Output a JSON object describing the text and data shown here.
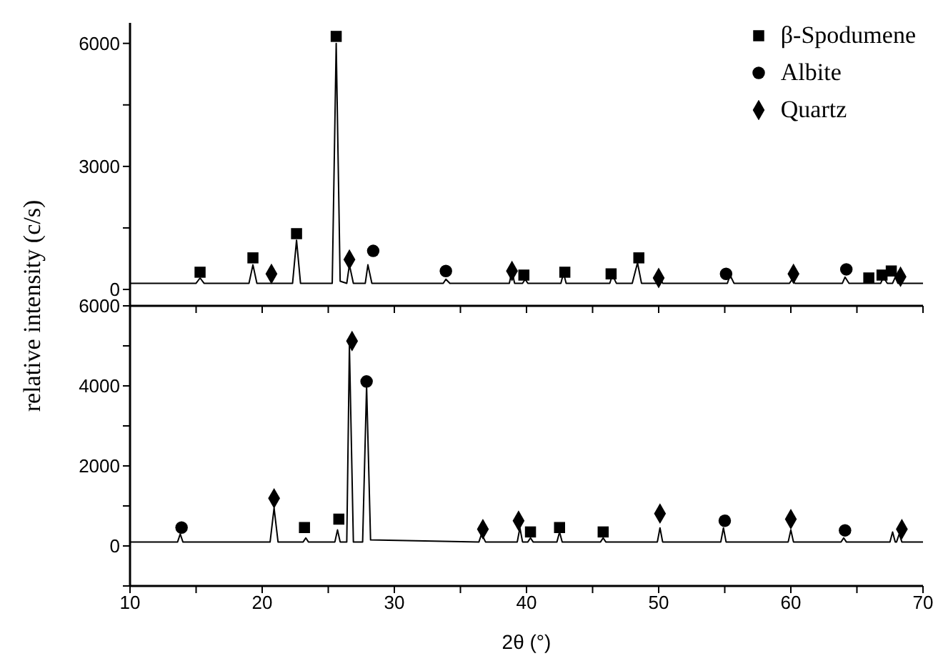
{
  "chart_data": [
    {
      "type": "line",
      "ylabel": "relative intensity (c/s)",
      "xlim": [
        10,
        70
      ],
      "xticks": [
        10,
        {
          "value": 15,
          "label": null
        },
        20,
        {
          "value": 25,
          "label": null
        },
        30,
        {
          "value": 35,
          "label": null
        },
        40,
        {
          "value": 45,
          "label": null
        },
        50,
        {
          "value": 55,
          "label": null
        },
        60,
        {
          "value": 65,
          "label": null
        },
        70
      ],
      "ylim": [
        -400,
        6500
      ],
      "yticks": [
        0,
        {
          "value": 1500,
          "label": null
        },
        3000,
        {
          "value": 4500,
          "label": null
        },
        6000
      ],
      "tick_labels": "y",
      "legend": "top right",
      "grid": false,
      "series": [
        {
          "color": "#000000",
          "marker": "none",
          "x": [
            10,
            15.0,
            15.3,
            15.6,
            19.0,
            19.3,
            19.6,
            22.3,
            22.6,
            22.9,
            25.3,
            25.6,
            25.9,
            26.4,
            26.6,
            26.9,
            27.8,
            28.0,
            28.3,
            33.7,
            33.9,
            34.2,
            38.7,
            38.9,
            39.1,
            39.7,
            39.9,
            40.1,
            42.6,
            42.8,
            43.0,
            46.3,
            46.5,
            46.8,
            48.0,
            48.4,
            48.7,
            49.9,
            50.1,
            50.3,
            55.2,
            55.4,
            55.7,
            59.9,
            60.1,
            60.3,
            63.9,
            64.1,
            64.4,
            66.8,
            67.0,
            67.3,
            67.7,
            67.9,
            68.1,
            70
          ],
          "values": [
            150,
            150,
            280,
            150,
            150,
            600,
            150,
            150,
            1200,
            150,
            150,
            6000,
            200,
            150,
            600,
            150,
            150,
            600,
            150,
            150,
            250,
            150,
            150,
            450,
            150,
            150,
            250,
            150,
            150,
            400,
            150,
            150,
            350,
            150,
            150,
            650,
            150,
            150,
            300,
            150,
            150,
            350,
            150,
            150,
            250,
            150,
            150,
            300,
            150,
            150,
            300,
            150,
            150,
            300,
            150,
            150
          ]
        },
        {
          "type": "scatter",
          "name": "β-Spodumene",
          "color": "#000000",
          "marker": "square",
          "x": [
            15.3,
            19.3,
            22.6,
            25.6,
            39.8,
            42.9,
            46.4,
            48.5,
            65.9,
            66.9,
            67.6
          ],
          "values": [
            420,
            770,
            1360,
            6170,
            350,
            420,
            380,
            770,
            280,
            350,
            450
          ]
        },
        {
          "type": "scatter",
          "name": "Albite",
          "color": "#000000",
          "marker": "circle",
          "x": [
            28.4,
            33.9,
            55.1,
            64.2
          ],
          "values": [
            940,
            450,
            380,
            490
          ]
        },
        {
          "type": "scatter",
          "name": "Quartz",
          "color": "#000000",
          "marker": "diamond",
          "x": [
            20.7,
            26.6,
            38.9,
            50.0,
            60.2,
            68.3
          ],
          "values": [
            380,
            730,
            450,
            280,
            380,
            310
          ]
        }
      ]
    },
    {
      "type": "line",
      "xlabel": "2θ (°)",
      "xlim": [
        10,
        70
      ],
      "xticks": [
        10,
        {
          "value": 15,
          "label": null
        },
        20,
        {
          "value": 25,
          "label": null
        },
        30,
        {
          "value": 35,
          "label": null
        },
        40,
        {
          "value": 45,
          "label": null
        },
        50,
        {
          "value": 55,
          "label": null
        },
        60,
        {
          "value": 65,
          "label": null
        },
        70
      ],
      "ylim": [
        -1000,
        6000
      ],
      "yticks": [
        {
          "value": -1000,
          "label": null
        },
        0,
        {
          "value": 1000,
          "label": null
        },
        2000,
        {
          "value": 3000,
          "label": null
        },
        4000,
        {
          "value": 5000,
          "label": null
        },
        6000
      ],
      "grid": false,
      "series": [
        {
          "color": "#000000",
          "marker": "none",
          "x": [
            10,
            13.6,
            13.8,
            14.0,
            20.6,
            20.9,
            21.2,
            23.1,
            23.3,
            23.5,
            25.5,
            25.7,
            25.9,
            26.4,
            26.6,
            26.9,
            27.6,
            27.9,
            28.2,
            36.4,
            36.6,
            36.9,
            39.3,
            39.5,
            39.7,
            40.1,
            40.3,
            40.5,
            42.3,
            42.5,
            42.7,
            45.6,
            45.8,
            46.0,
            49.9,
            50.1,
            50.3,
            54.7,
            54.9,
            55.1,
            59.8,
            60.0,
            60.2,
            63.8,
            64.0,
            64.2,
            67.5,
            67.7,
            67.9,
            68.0,
            68.2,
            68.4,
            70
          ],
          "values": [
            100,
            100,
            300,
            100,
            100,
            950,
            100,
            100,
            200,
            100,
            100,
            400,
            100,
            100,
            5000,
            100,
            100,
            4000,
            150,
            100,
            300,
            100,
            100,
            450,
            100,
            100,
            200,
            100,
            100,
            350,
            100,
            100,
            200,
            100,
            100,
            450,
            100,
            100,
            450,
            100,
            100,
            400,
            100,
            100,
            200,
            100,
            100,
            350,
            100,
            100,
            300,
            100,
            100
          ]
        },
        {
          "type": "scatter",
          "color": "#000000",
          "marker": "square",
          "x": [
            23.2,
            25.8,
            40.3,
            42.5,
            45.8
          ],
          "values": [
            460,
            670,
            350,
            460,
            350
          ]
        },
        {
          "type": "scatter",
          "color": "#000000",
          "marker": "circle",
          "x": [
            13.9,
            27.9,
            55.0,
            64.1
          ],
          "values": [
            460,
            4110,
            630,
            390
          ]
        },
        {
          "type": "scatter",
          "color": "#000000",
          "marker": "diamond",
          "x": [
            20.9,
            26.8,
            36.7,
            39.4,
            50.1,
            60.0,
            68.4
          ],
          "values": [
            1190,
            5120,
            420,
            630,
            810,
            670,
            420
          ]
        }
      ]
    }
  ]
}
